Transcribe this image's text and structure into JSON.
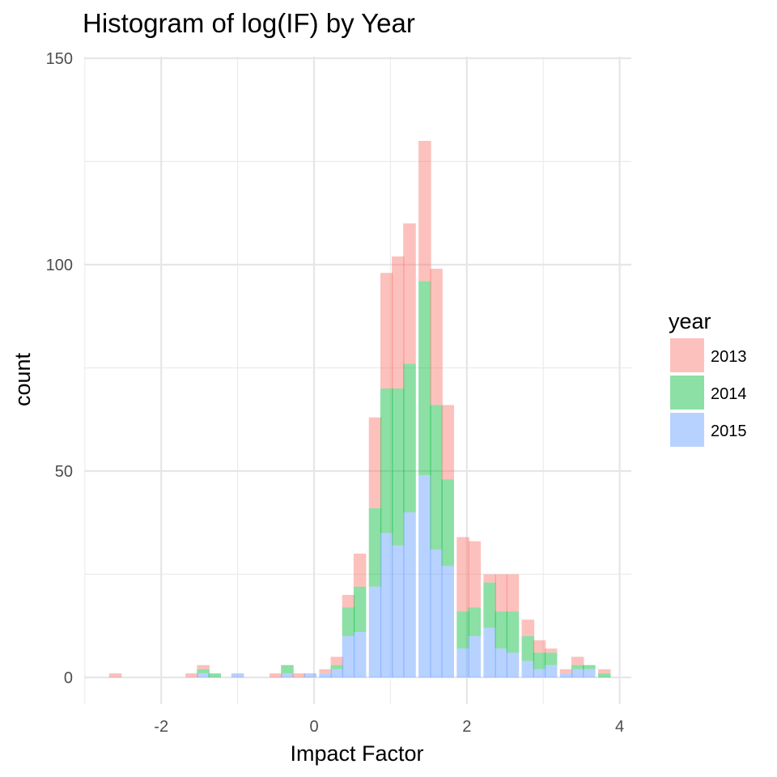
{
  "chart_data": {
    "type": "bar",
    "stacked": true,
    "title": "Histogram of log(IF) by Year",
    "xlabel": "Impact Factor",
    "ylabel": "count",
    "xlim": [
      -3.1,
      4.15
    ],
    "ylim": [
      -6,
      150
    ],
    "bin_width": 0.165,
    "x_ticks": [
      "-2",
      "0",
      "2",
      "4"
    ],
    "x_tick_values": [
      -2,
      0,
      2,
      4
    ],
    "y_ticks": [
      "0",
      "50",
      "100",
      "150"
    ],
    "y_tick_values": [
      0,
      50,
      100,
      150
    ],
    "grid": true,
    "legend": {
      "title": "year",
      "position": "right"
    },
    "x": [
      -2.6,
      -1.6,
      -1.45,
      -1.3,
      -1.0,
      -0.5,
      -0.35,
      -0.2,
      -0.05,
      0.15,
      0.3,
      0.45,
      0.6,
      0.8,
      0.95,
      1.1,
      1.25,
      1.45,
      1.6,
      1.75,
      1.95,
      2.1,
      2.3,
      2.45,
      2.6,
      2.8,
      2.95,
      3.1,
      3.3,
      3.45,
      3.6,
      3.8
    ],
    "series": [
      {
        "name": "2013",
        "color": "#f8766d",
        "values": [
          1,
          1,
          1,
          0,
          0,
          1,
          0,
          1,
          0,
          1,
          2,
          3,
          8,
          22,
          28,
          32,
          34,
          34,
          33,
          18,
          18,
          16,
          2,
          9,
          9,
          4,
          3,
          1,
          1,
          2,
          0,
          1
        ]
      },
      {
        "name": "2014",
        "color": "#00ba38",
        "values": [
          0,
          0,
          1,
          1,
          0,
          0,
          2,
          0,
          0,
          0,
          1,
          7,
          11,
          19,
          35,
          38,
          36,
          47,
          35,
          21,
          9,
          7,
          11,
          9,
          10,
          6,
          4,
          3,
          0,
          1,
          1,
          1
        ]
      },
      {
        "name": "2015",
        "color": "#619cff",
        "values": [
          0,
          0,
          1,
          0,
          1,
          0,
          1,
          0,
          1,
          1,
          2,
          10,
          11,
          22,
          35,
          32,
          40,
          49,
          31,
          27,
          7,
          10,
          12,
          7,
          6,
          4,
          2,
          3,
          1,
          2,
          2,
          0
        ]
      }
    ]
  }
}
